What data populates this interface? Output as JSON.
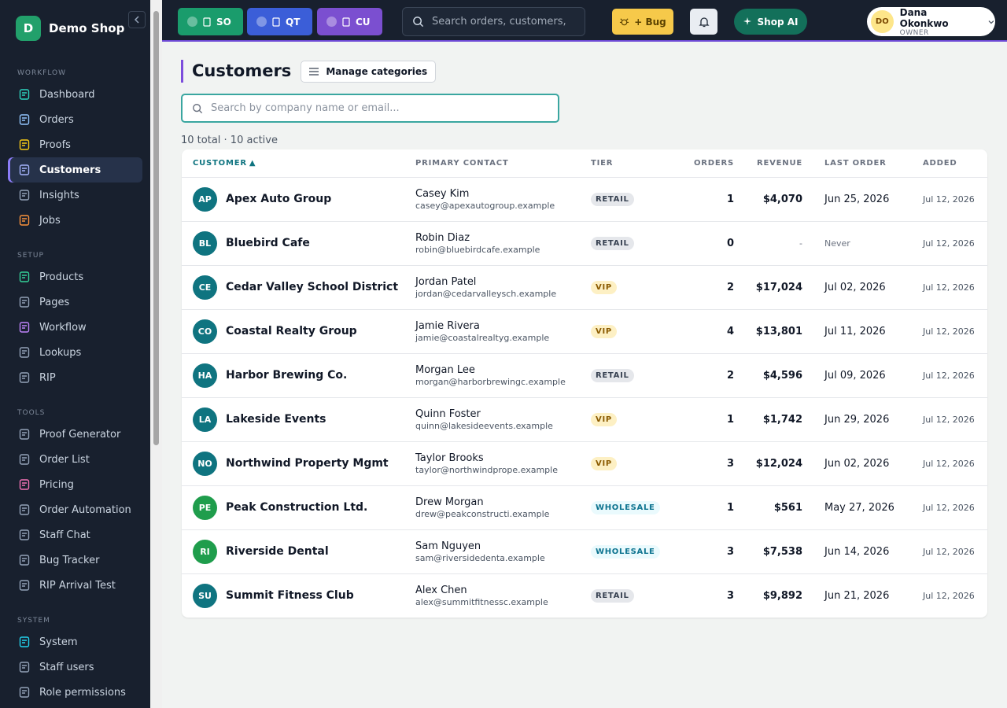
{
  "sidebar": {
    "brand_initial": "D",
    "brand_name": "Demo Shop",
    "sections": [
      {
        "title": "WORKFLOW",
        "items": [
          {
            "label": "Dashboard",
            "icon_color": "#2dd4bf"
          },
          {
            "label": "Orders",
            "icon_color": "#93c5fd"
          },
          {
            "label": "Proofs",
            "icon_color": "#facc15"
          },
          {
            "label": "Customers",
            "icon_color": "#a5b4fc",
            "active": true
          },
          {
            "label": "Insights",
            "icon_color": "#94a3b8"
          },
          {
            "label": "Jobs",
            "icon_color": "#fb923c"
          }
        ]
      },
      {
        "title": "SETUP",
        "items": [
          {
            "label": "Products",
            "icon_color": "#34d399"
          },
          {
            "label": "Pages",
            "icon_color": "#94a3b8"
          },
          {
            "label": "Workflow",
            "icon_color": "#c084fc"
          },
          {
            "label": "Lookups",
            "icon_color": "#94a3b8"
          },
          {
            "label": "RIP",
            "icon_color": "#94a3b8"
          }
        ]
      },
      {
        "title": "TOOLS",
        "items": [
          {
            "label": "Proof Generator",
            "icon_color": "#94a3b8"
          },
          {
            "label": "Order List",
            "icon_color": "#94a3b8"
          },
          {
            "label": "Pricing",
            "icon_color": "#f472b6"
          },
          {
            "label": "Order Automation",
            "icon_color": "#94a3b8"
          },
          {
            "label": "Staff Chat",
            "icon_color": "#94a3b8"
          },
          {
            "label": "Bug Tracker",
            "icon_color": "#94a3b8"
          },
          {
            "label": "RIP Arrival Test",
            "icon_color": "#94a3b8"
          }
        ]
      },
      {
        "title": "SYSTEM",
        "items": [
          {
            "label": "System",
            "icon_color": "#22d3ee"
          },
          {
            "label": "Staff users",
            "icon_color": "#94a3b8"
          },
          {
            "label": "Role permissions",
            "icon_color": "#94a3b8"
          }
        ]
      }
    ]
  },
  "topbar": {
    "quick_buttons": [
      {
        "label": "SO",
        "color": "#1a9c6c"
      },
      {
        "label": "QT",
        "color": "#3b5ed8"
      },
      {
        "label": "CU",
        "color": "#7b4fd0"
      }
    ],
    "search_placeholder": "Search orders, customers,",
    "bug_button": "+ Bug",
    "ai_button": "Shop AI",
    "user": {
      "initials": "DO",
      "name": "Dana Okonkwo",
      "role": "OWNER"
    }
  },
  "page": {
    "title": "Customers",
    "manage_button": "Manage categories",
    "search_placeholder": "Search by company name or email...",
    "summary": "10 total · 10 active"
  },
  "table": {
    "columns": [
      "CUSTOMER",
      "PRIMARY CONTACT",
      "TIER",
      "ORDERS",
      "REVENUE",
      "LAST ORDER",
      "ADDED"
    ],
    "sort_indicator": "▲",
    "rows": [
      {
        "initials": "AP",
        "name": "Apex Auto Group",
        "contact": "Casey Kim",
        "email": "casey@apexautogroup.example",
        "tier": "RETAIL",
        "orders": 1,
        "revenue": "$4,070",
        "last_order": "Jun 25, 2026",
        "added": "Jul 12, 2026",
        "avatar_color": "#0f7480"
      },
      {
        "initials": "BL",
        "name": "Bluebird Cafe",
        "contact": "Robin Diaz",
        "email": "robin@bluebirdcafe.example",
        "tier": "RETAIL",
        "orders": 0,
        "revenue": "-",
        "last_order": "Never",
        "added": "Jul 12, 2026",
        "avatar_color": "#0f7480"
      },
      {
        "initials": "CE",
        "name": "Cedar Valley School District",
        "contact": "Jordan Patel",
        "email": "jordan@cedarvalleysch.example",
        "tier": "VIP",
        "orders": 2,
        "revenue": "$17,024",
        "last_order": "Jul 02, 2026",
        "added": "Jul 12, 2026",
        "avatar_color": "#0f7480"
      },
      {
        "initials": "CO",
        "name": "Coastal Realty Group",
        "contact": "Jamie Rivera",
        "email": "jamie@coastalrealtyg.example",
        "tier": "VIP",
        "orders": 4,
        "revenue": "$13,801",
        "last_order": "Jul 11, 2026",
        "added": "Jul 12, 2026",
        "avatar_color": "#0f7480"
      },
      {
        "initials": "HA",
        "name": "Harbor Brewing Co.",
        "contact": "Morgan Lee",
        "email": "morgan@harborbrewingc.example",
        "tier": "RETAIL",
        "orders": 2,
        "revenue": "$4,596",
        "last_order": "Jul 09, 2026",
        "added": "Jul 12, 2026",
        "avatar_color": "#0f7480"
      },
      {
        "initials": "LA",
        "name": "Lakeside Events",
        "contact": "Quinn Foster",
        "email": "quinn@lakesideevents.example",
        "tier": "VIP",
        "orders": 1,
        "revenue": "$1,742",
        "last_order": "Jun 29, 2026",
        "added": "Jul 12, 2026",
        "avatar_color": "#0f7480"
      },
      {
        "initials": "NO",
        "name": "Northwind Property Mgmt",
        "contact": "Taylor Brooks",
        "email": "taylor@northwindprope.example",
        "tier": "VIP",
        "orders": 3,
        "revenue": "$12,024",
        "last_order": "Jun 02, 2026",
        "added": "Jul 12, 2026",
        "avatar_color": "#0f7480"
      },
      {
        "initials": "PE",
        "name": "Peak Construction Ltd.",
        "contact": "Drew Morgan",
        "email": "drew@peakconstructi.example",
        "tier": "WHOLESALE",
        "orders": 1,
        "revenue": "$561",
        "last_order": "May 27, 2026",
        "added": "Jul 12, 2026",
        "avatar_color": "#1f9d4c"
      },
      {
        "initials": "RI",
        "name": "Riverside Dental",
        "contact": "Sam Nguyen",
        "email": "sam@riversidedenta.example",
        "tier": "WHOLESALE",
        "orders": 3,
        "revenue": "$7,538",
        "last_order": "Jun 14, 2026",
        "added": "Jul 12, 2026",
        "avatar_color": "#1f9d4c"
      },
      {
        "initials": "SU",
        "name": "Summit Fitness Club",
        "contact": "Alex Chen",
        "email": "alex@summitfitnessc.example",
        "tier": "RETAIL",
        "orders": 3,
        "revenue": "$9,892",
        "last_order": "Jun 21, 2026",
        "added": "Jul 12, 2026",
        "avatar_color": "#0f7480"
      }
    ]
  }
}
